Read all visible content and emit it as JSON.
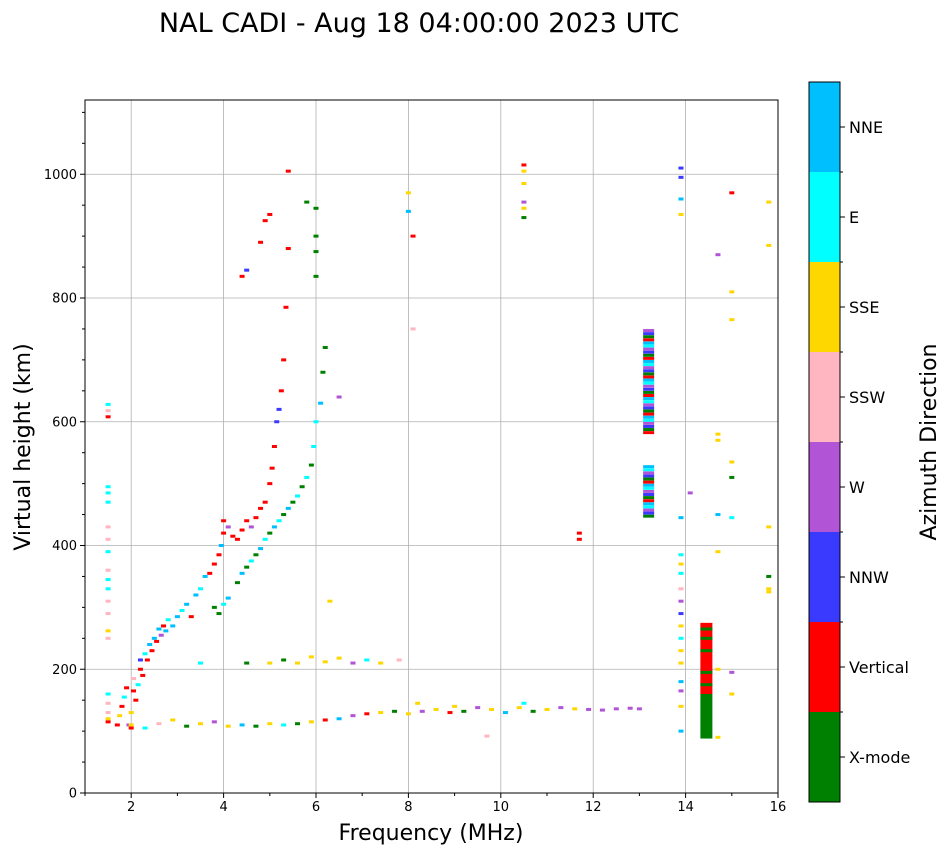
{
  "chart_data": {
    "type": "scatter",
    "title": "NAL CADI - Aug 18 04:00:00 2023 UTC",
    "xlabel": "Frequency (MHz)",
    "ylabel": "Virtual height (km)",
    "xlim": [
      1,
      16
    ],
    "ylim": [
      0,
      1120
    ],
    "xticks": [
      2,
      4,
      6,
      8,
      10,
      12,
      14,
      16
    ],
    "yticks": [
      0,
      200,
      400,
      600,
      800,
      1000
    ],
    "grid": true,
    "colorbar": {
      "title": "Azimuth Direction",
      "categories": [
        {
          "name": "X-mode",
          "color": "#008000"
        },
        {
          "name": "Vertical",
          "color": "#ff0000"
        },
        {
          "name": "NNW",
          "color": "#3a3aff"
        },
        {
          "name": "W",
          "color": "#b155d6"
        },
        {
          "name": "SSW",
          "color": "#ffb6c1"
        },
        {
          "name": "SSE",
          "color": "#ffd700"
        },
        {
          "name": "E",
          "color": "#00ffff"
        },
        {
          "name": "NNE",
          "color": "#00bfff"
        }
      ]
    },
    "points": [
      [
        1.5,
        120,
        "SSE"
      ],
      [
        1.5,
        115,
        "Vertical"
      ],
      [
        1.5,
        130,
        "SSW"
      ],
      [
        1.5,
        145,
        "SSW"
      ],
      [
        1.5,
        160,
        "E"
      ],
      [
        1.5,
        250,
        "SSW"
      ],
      [
        1.5,
        262,
        "SSE"
      ],
      [
        1.5,
        290,
        "SSW"
      ],
      [
        1.5,
        310,
        "SSW"
      ],
      [
        1.5,
        330,
        "E"
      ],
      [
        1.5,
        345,
        "E"
      ],
      [
        1.5,
        360,
        "SSW"
      ],
      [
        1.5,
        390,
        "E"
      ],
      [
        1.5,
        410,
        "SSW"
      ],
      [
        1.5,
        430,
        "SSW"
      ],
      [
        1.5,
        470,
        "E"
      ],
      [
        1.5,
        485,
        "E"
      ],
      [
        1.5,
        495,
        "E"
      ],
      [
        1.5,
        608,
        "Vertical"
      ],
      [
        1.5,
        618,
        "SSW"
      ],
      [
        1.5,
        628,
        "E"
      ],
      [
        1.7,
        110,
        "Vertical"
      ],
      [
        1.75,
        125,
        "SSE"
      ],
      [
        1.8,
        140,
        "Vertical"
      ],
      [
        1.85,
        155,
        "E"
      ],
      [
        1.9,
        170,
        "Vertical"
      ],
      [
        1.95,
        110,
        "W"
      ],
      [
        2.0,
        105,
        "Vertical"
      ],
      [
        2.0,
        130,
        "SSE"
      ],
      [
        2.05,
        165,
        "Vertical"
      ],
      [
        2.05,
        185,
        "SSW"
      ],
      [
        2.1,
        150,
        "Vertical"
      ],
      [
        2.15,
        175,
        "E"
      ],
      [
        2.2,
        200,
        "Vertical"
      ],
      [
        2.2,
        215,
        "NNW"
      ],
      [
        2.25,
        190,
        "Vertical"
      ],
      [
        2.3,
        225,
        "E"
      ],
      [
        2.35,
        215,
        "Vertical"
      ],
      [
        2.4,
        240,
        "NNE"
      ],
      [
        2.45,
        230,
        "Vertical"
      ],
      [
        2.5,
        250,
        "NNE"
      ],
      [
        2.55,
        245,
        "Vertical"
      ],
      [
        2.6,
        265,
        "NNE"
      ],
      [
        2.65,
        255,
        "W"
      ],
      [
        2.7,
        270,
        "Vertical"
      ],
      [
        2.75,
        262,
        "NNE"
      ],
      [
        2.8,
        280,
        "E"
      ],
      [
        2.9,
        270,
        "NNE"
      ],
      [
        3.0,
        285,
        "NNE"
      ],
      [
        3.1,
        295,
        "E"
      ],
      [
        3.2,
        305,
        "NNE"
      ],
      [
        3.3,
        285,
        "Vertical"
      ],
      [
        3.4,
        320,
        "NNE"
      ],
      [
        3.5,
        330,
        "E"
      ],
      [
        3.6,
        350,
        "NNE"
      ],
      [
        3.7,
        355,
        "Vertical"
      ],
      [
        3.8,
        370,
        "Vertical"
      ],
      [
        3.9,
        385,
        "Vertical"
      ],
      [
        3.95,
        400,
        "NNE"
      ],
      [
        4.0,
        420,
        "Vertical"
      ],
      [
        4.0,
        440,
        "Vertical"
      ],
      [
        4.1,
        430,
        "W"
      ],
      [
        4.2,
        415,
        "Vertical"
      ],
      [
        4.3,
        410,
        "Vertical"
      ],
      [
        4.4,
        425,
        "Vertical"
      ],
      [
        4.5,
        440,
        "Vertical"
      ],
      [
        4.6,
        430,
        "W"
      ],
      [
        4.7,
        445,
        "Vertical"
      ],
      [
        4.8,
        460,
        "Vertical"
      ],
      [
        4.9,
        470,
        "Vertical"
      ],
      [
        5.0,
        500,
        "Vertical"
      ],
      [
        5.05,
        525,
        "Vertical"
      ],
      [
        5.1,
        560,
        "Vertical"
      ],
      [
        5.15,
        600,
        "NNW"
      ],
      [
        5.2,
        620,
        "NNW"
      ],
      [
        5.25,
        650,
        "Vertical"
      ],
      [
        5.3,
        700,
        "Vertical"
      ],
      [
        5.35,
        785,
        "Vertical"
      ],
      [
        3.8,
        300,
        "X-mode"
      ],
      [
        3.9,
        290,
        "X-mode"
      ],
      [
        4.0,
        305,
        "E"
      ],
      [
        4.1,
        315,
        "NNE"
      ],
      [
        4.3,
        340,
        "X-mode"
      ],
      [
        4.4,
        355,
        "NNE"
      ],
      [
        4.5,
        365,
        "X-mode"
      ],
      [
        4.6,
        375,
        "E"
      ],
      [
        4.7,
        385,
        "X-mode"
      ],
      [
        4.8,
        395,
        "NNE"
      ],
      [
        4.9,
        410,
        "E"
      ],
      [
        5.0,
        420,
        "X-mode"
      ],
      [
        5.1,
        430,
        "NNE"
      ],
      [
        5.2,
        440,
        "E"
      ],
      [
        5.3,
        450,
        "X-mode"
      ],
      [
        5.4,
        460,
        "NNE"
      ],
      [
        5.5,
        470,
        "X-mode"
      ],
      [
        5.6,
        480,
        "E"
      ],
      [
        5.7,
        495,
        "X-mode"
      ],
      [
        5.8,
        510,
        "E"
      ],
      [
        5.9,
        530,
        "X-mode"
      ],
      [
        5.95,
        560,
        "E"
      ],
      [
        6.0,
        600,
        "E"
      ],
      [
        6.1,
        630,
        "NNE"
      ],
      [
        6.15,
        680,
        "X-mode"
      ],
      [
        6.2,
        720,
        "X-mode"
      ],
      [
        4.4,
        835,
        "Vertical"
      ],
      [
        4.5,
        845,
        "NNW"
      ],
      [
        4.8,
        890,
        "Vertical"
      ],
      [
        4.9,
        925,
        "Vertical"
      ],
      [
        5.0,
        935,
        "Vertical"
      ],
      [
        5.4,
        880,
        "Vertical"
      ],
      [
        5.4,
        1005,
        "Vertical"
      ],
      [
        5.8,
        955,
        "X-mode"
      ],
      [
        6.0,
        945,
        "X-mode"
      ],
      [
        6.0,
        900,
        "X-mode"
      ],
      [
        6.0,
        875,
        "X-mode"
      ],
      [
        6.0,
        835,
        "X-mode"
      ],
      [
        6.5,
        640,
        "W"
      ],
      [
        6.3,
        310,
        "SSE"
      ],
      [
        2.0,
        110,
        "SSE"
      ],
      [
        2.3,
        105,
        "E"
      ],
      [
        2.6,
        112,
        "SSW"
      ],
      [
        2.9,
        118,
        "SSE"
      ],
      [
        3.2,
        108,
        "X-mode"
      ],
      [
        3.5,
        112,
        "SSE"
      ],
      [
        3.8,
        115,
        "W"
      ],
      [
        4.1,
        108,
        "SSE"
      ],
      [
        4.4,
        110,
        "NNE"
      ],
      [
        4.7,
        108,
        "X-mode"
      ],
      [
        5.0,
        112,
        "SSE"
      ],
      [
        5.3,
        110,
        "E"
      ],
      [
        5.6,
        112,
        "X-mode"
      ],
      [
        5.9,
        115,
        "SSE"
      ],
      [
        6.2,
        118,
        "Vertical"
      ],
      [
        6.5,
        120,
        "NNE"
      ],
      [
        6.8,
        125,
        "W"
      ],
      [
        7.1,
        128,
        "Vertical"
      ],
      [
        7.4,
        130,
        "SSE"
      ],
      [
        7.7,
        132,
        "X-mode"
      ],
      [
        8.0,
        128,
        "SSE"
      ],
      [
        8.3,
        132,
        "W"
      ],
      [
        8.6,
        135,
        "SSE"
      ],
      [
        8.9,
        130,
        "Vertical"
      ],
      [
        9.2,
        132,
        "X-mode"
      ],
      [
        9.5,
        138,
        "W"
      ],
      [
        9.8,
        135,
        "SSE"
      ],
      [
        10.1,
        130,
        "NNE"
      ],
      [
        10.4,
        138,
        "SSE"
      ],
      [
        10.7,
        132,
        "X-mode"
      ],
      [
        11.0,
        135,
        "SSE"
      ],
      [
        11.3,
        138,
        "W"
      ],
      [
        11.6,
        136,
        "SSE"
      ],
      [
        11.9,
        135,
        "W"
      ],
      [
        12.2,
        134,
        "W"
      ],
      [
        12.5,
        136,
        "W"
      ],
      [
        12.8,
        137,
        "W"
      ],
      [
        13.0,
        136,
        "W"
      ],
      [
        9.7,
        92,
        "SSW"
      ],
      [
        8.2,
        145,
        "SSE"
      ],
      [
        9.0,
        140,
        "SSE"
      ],
      [
        10.5,
        145,
        "E"
      ],
      [
        5.0,
        210,
        "SSE"
      ],
      [
        5.3,
        215,
        "X-mode"
      ],
      [
        5.6,
        210,
        "SSE"
      ],
      [
        5.9,
        220,
        "SSE"
      ],
      [
        6.2,
        212,
        "SSE"
      ],
      [
        6.5,
        218,
        "SSE"
      ],
      [
        6.8,
        210,
        "W"
      ],
      [
        7.1,
        215,
        "E"
      ],
      [
        7.4,
        210,
        "SSE"
      ],
      [
        7.8,
        215,
        "SSW"
      ],
      [
        4.5,
        210,
        "X-mode"
      ],
      [
        3.5,
        210,
        "E"
      ],
      [
        8.0,
        970,
        "SSE"
      ],
      [
        8.0,
        940,
        "NNE"
      ],
      [
        8.1,
        900,
        "Vertical"
      ],
      [
        8.1,
        750,
        "SSW"
      ],
      [
        10.5,
        1015,
        "Vertical"
      ],
      [
        10.5,
        1005,
        "SSE"
      ],
      [
        10.5,
        985,
        "SSE"
      ],
      [
        10.5,
        955,
        "W"
      ],
      [
        10.5,
        945,
        "SSE"
      ],
      [
        10.5,
        930,
        "X-mode"
      ],
      [
        11.7,
        420,
        "Vertical"
      ],
      [
        11.7,
        410,
        "Vertical"
      ],
      [
        13.9,
        1010,
        "NNW"
      ],
      [
        13.9,
        995,
        "NNW"
      ],
      [
        13.9,
        960,
        "NNE"
      ],
      [
        13.9,
        935,
        "SSE"
      ],
      [
        13.9,
        445,
        "NNE"
      ],
      [
        13.9,
        385,
        "E"
      ],
      [
        13.9,
        370,
        "SSE"
      ],
      [
        13.9,
        355,
        "E"
      ],
      [
        13.9,
        330,
        "SSW"
      ],
      [
        13.9,
        310,
        "W"
      ],
      [
        13.9,
        290,
        "NNW"
      ],
      [
        13.9,
        270,
        "SSE"
      ],
      [
        13.9,
        250,
        "E"
      ],
      [
        13.9,
        230,
        "SSE"
      ],
      [
        13.9,
        210,
        "SSE"
      ],
      [
        13.9,
        180,
        "NNE"
      ],
      [
        13.9,
        165,
        "W"
      ],
      [
        13.9,
        140,
        "SSE"
      ],
      [
        13.9,
        100,
        "NNE"
      ],
      [
        14.1,
        485,
        "W"
      ],
      [
        14.7,
        870,
        "W"
      ],
      [
        14.7,
        580,
        "SSE"
      ],
      [
        14.7,
        570,
        "SSE"
      ],
      [
        14.7,
        450,
        "NNE"
      ],
      [
        14.7,
        390,
        "SSE"
      ],
      [
        14.7,
        200,
        "SSE"
      ],
      [
        14.7,
        90,
        "SSE"
      ],
      [
        15.0,
        970,
        "Vertical"
      ],
      [
        15.0,
        810,
        "SSE"
      ],
      [
        15.0,
        765,
        "SSE"
      ],
      [
        15.0,
        535,
        "SSE"
      ],
      [
        15.0,
        510,
        "X-mode"
      ],
      [
        15.0,
        445,
        "E"
      ],
      [
        15.0,
        195,
        "W"
      ],
      [
        15.0,
        160,
        "SSE"
      ],
      [
        15.8,
        955,
        "SSE"
      ],
      [
        15.8,
        885,
        "SSE"
      ],
      [
        15.8,
        430,
        "SSE"
      ],
      [
        15.8,
        350,
        "X-mode"
      ],
      [
        15.8,
        330,
        "SSE"
      ],
      [
        15.8,
        325,
        "SSE"
      ]
    ],
    "column_13": {
      "x": 13.2,
      "ranges": [
        [
          445,
          525
        ],
        [
          580,
          745
        ]
      ],
      "colors": [
        "X-mode",
        "NNW",
        "W",
        "E",
        "NNE",
        "Vertical"
      ]
    },
    "column_14_5": {
      "x": 14.45,
      "x_mode": [
        88,
        160
      ],
      "vertical": [
        160,
        275
      ],
      "x_mode_marks": [
        175,
        195,
        230,
        250,
        265
      ]
    }
  }
}
